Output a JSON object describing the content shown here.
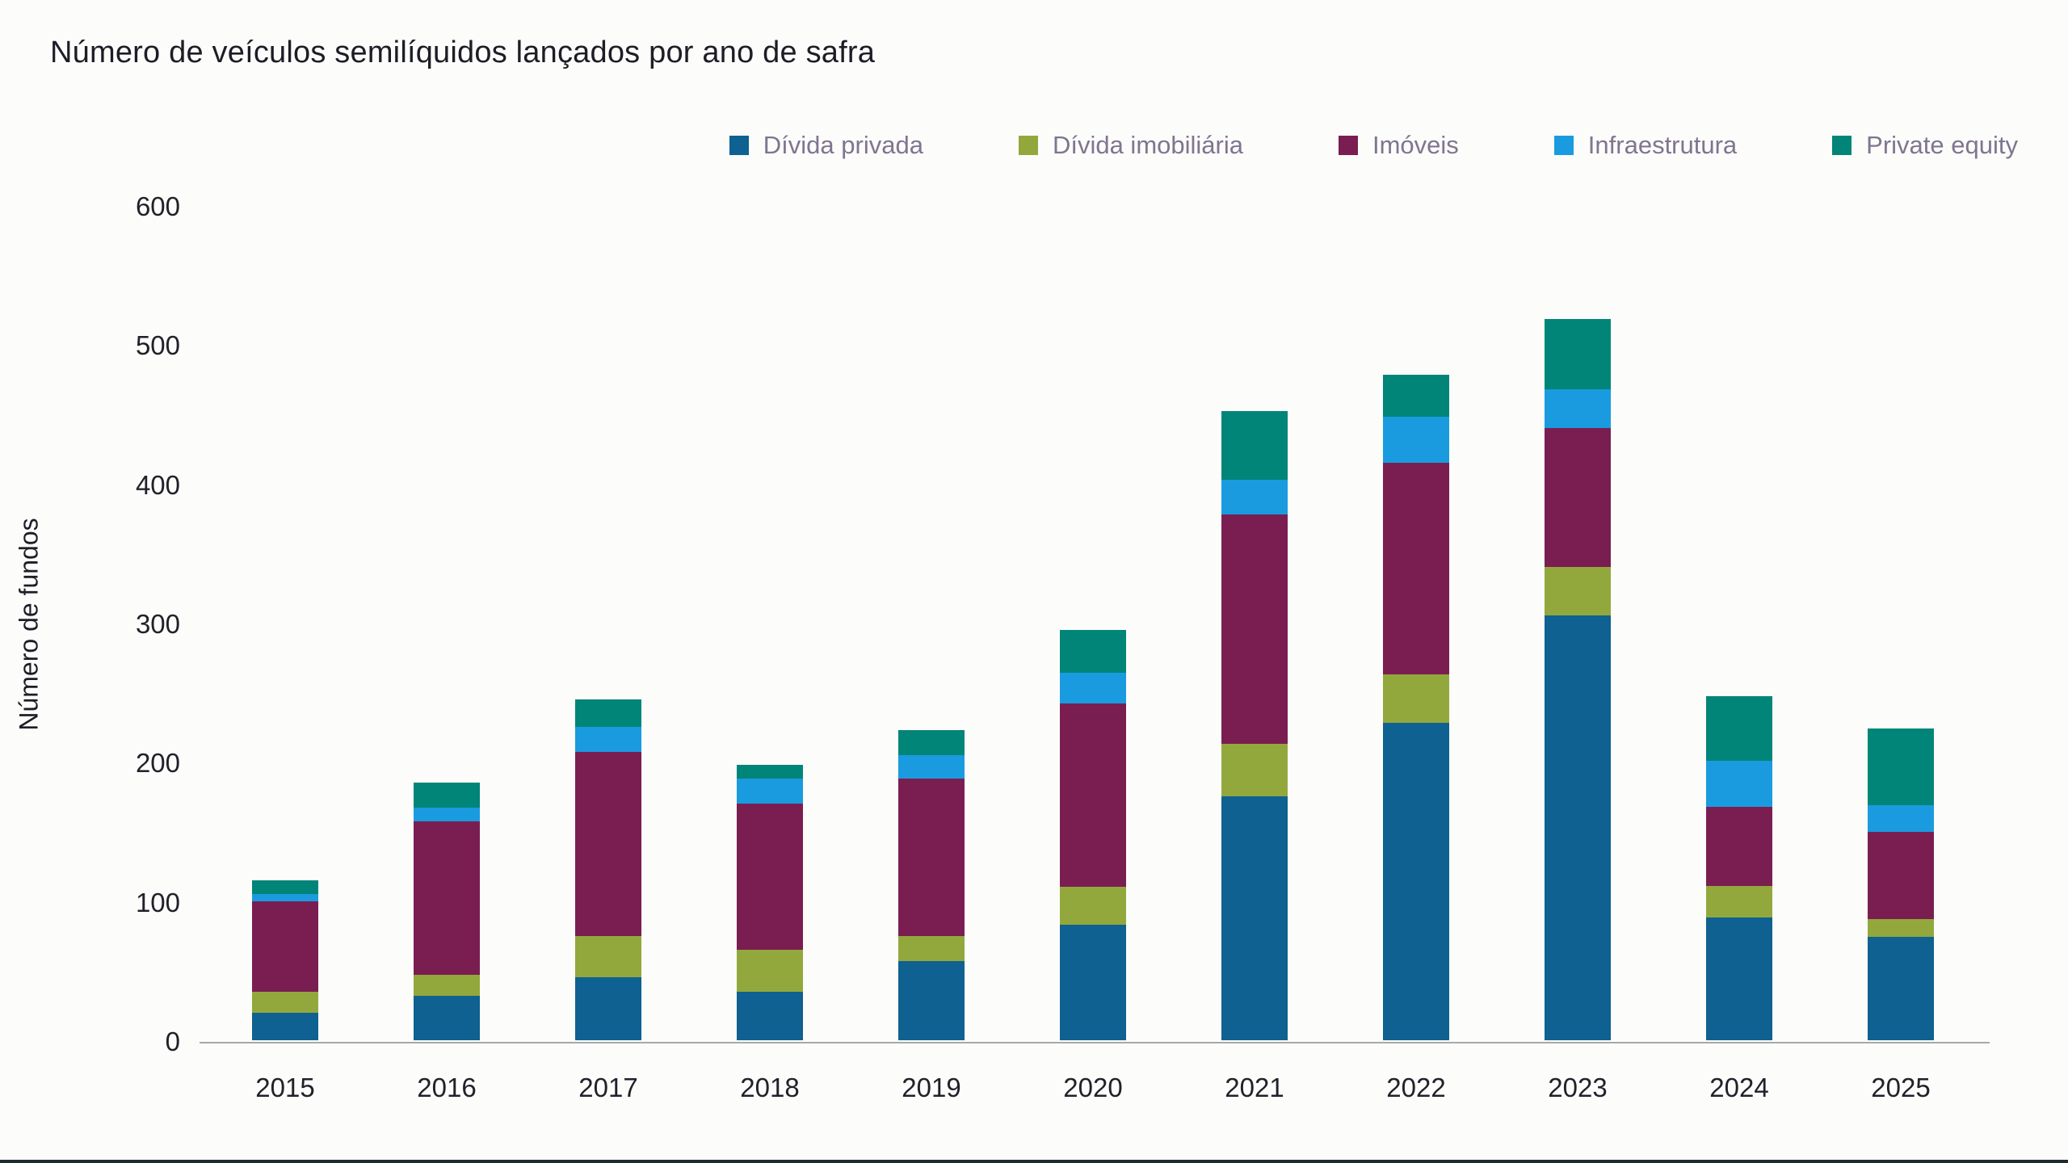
{
  "title": "Número de veículos semilíquidos lançados por ano de safra",
  "chart_data": {
    "type": "bar",
    "stacked": true,
    "title": "Número de veículos semilíquidos lançados por ano de safra",
    "xlabel": "",
    "ylabel": "Número de fundos",
    "ylim": [
      0,
      600
    ],
    "yticks": [
      0,
      100,
      200,
      300,
      400,
      500,
      600
    ],
    "grid": false,
    "legend_position": "top-right",
    "categories": [
      "2015",
      "2016",
      "2017",
      "2018",
      "2019",
      "2020",
      "2021",
      "2022",
      "2023",
      "2024",
      "2025"
    ],
    "series": [
      {
        "name": "Dívida privada",
        "color": "#0e6190",
        "values": [
          20,
          32,
          45,
          35,
          57,
          83,
          175,
          228,
          305,
          88,
          74
        ]
      },
      {
        "name": "Dívida imobiliária",
        "color": "#93a83c",
        "values": [
          15,
          15,
          30,
          30,
          18,
          27,
          38,
          35,
          35,
          23,
          13
        ]
      },
      {
        "name": "Imóveis",
        "color": "#7a1e52",
        "values": [
          65,
          110,
          132,
          105,
          113,
          132,
          165,
          152,
          100,
          57,
          63
        ]
      },
      {
        "name": "Infraestrutura",
        "color": "#1a9bdf",
        "values": [
          5,
          10,
          18,
          18,
          17,
          22,
          25,
          33,
          28,
          33,
          19
        ]
      },
      {
        "name": "Private equity",
        "color": "#008578",
        "values": [
          10,
          18,
          20,
          10,
          18,
          31,
          49,
          30,
          50,
          46,
          55
        ]
      }
    ]
  }
}
